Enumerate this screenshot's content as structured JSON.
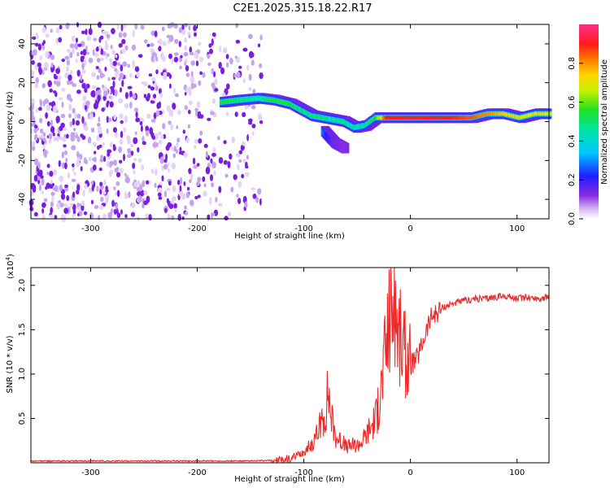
{
  "title": "C2E1.2025.315.18.22.R17",
  "colors": {
    "snr_line": "#ee2a2a",
    "axis": "#000000",
    "purple_noise": "#7a1fe0",
    "background": "#ffffff"
  },
  "chart_data": [
    {
      "type": "heatmap",
      "name": "spectrogram",
      "xlabel": "Height of straight line (km)",
      "ylabel": "Frequency (Hz)",
      "xlim": [
        -356,
        130
      ],
      "ylim": [
        -50,
        50
      ],
      "x_ticks": [
        -300,
        -200,
        -100,
        0,
        100
      ],
      "x_tick_labels": [
        "-300",
        "-200",
        "-100",
        "0",
        "100"
      ],
      "y_ticks": [
        -40,
        -20,
        0,
        20,
        40
      ],
      "y_tick_labels": [
        "-40",
        "-20",
        "0",
        "20",
        "40"
      ],
      "colorbar": {
        "label": "Normalized spectral amplitude",
        "range": [
          0,
          1
        ],
        "ticks": [
          0.0,
          0.2,
          0.4,
          0.6,
          0.8
        ],
        "tick_labels": [
          "0.0",
          "0.2",
          "0.4",
          "0.6",
          "0.8"
        ],
        "colormap": "rainbow (purple-blue-cyan-green-yellow-orange-red-pink)"
      },
      "noise_region": {
        "x_from": -356,
        "x_to": -140,
        "freq_range": [
          -50,
          50
        ],
        "amplitude": "low (0.0-0.15)"
      },
      "signal_track": [
        {
          "x": -175,
          "freq": 10,
          "amp": 0.55
        },
        {
          "x": -160,
          "freq": 11,
          "amp": 0.5
        },
        {
          "x": -140,
          "freq": 12,
          "amp": 0.45
        },
        {
          "x": -125,
          "freq": 11,
          "amp": 0.55
        },
        {
          "x": -110,
          "freq": 9,
          "amp": 0.55
        },
        {
          "x": -100,
          "freq": 6,
          "amp": 0.5
        },
        {
          "x": -90,
          "freq": 3,
          "amp": 0.5
        },
        {
          "x": -80,
          "freq": 2,
          "amp": 0.5
        },
        {
          "x": -70,
          "freq": 1,
          "amp": 0.45
        },
        {
          "x": -60,
          "freq": 0,
          "amp": 0.5
        },
        {
          "x": -50,
          "freq": -3,
          "amp": 0.45
        },
        {
          "x": -40,
          "freq": -2,
          "amp": 0.45
        },
        {
          "x": -30,
          "freq": 2,
          "amp": 0.55
        },
        {
          "x": -20,
          "freq": 2,
          "amp": 0.9
        },
        {
          "x": 0,
          "freq": 2,
          "amp": 0.9
        },
        {
          "x": 20,
          "freq": 2,
          "amp": 0.9
        },
        {
          "x": 40,
          "freq": 2,
          "amp": 0.9
        },
        {
          "x": 60,
          "freq": 2,
          "amp": 0.85
        },
        {
          "x": 75,
          "freq": 4,
          "amp": 0.8
        },
        {
          "x": 90,
          "freq": 4,
          "amp": 0.75
        },
        {
          "x": 105,
          "freq": 2,
          "amp": 0.7
        },
        {
          "x": 120,
          "freq": 4,
          "amp": 0.7
        },
        {
          "x": 130,
          "freq": 4,
          "amp": 0.7
        }
      ],
      "secondary_track": [
        {
          "x": -80,
          "freq": -5,
          "amp": 0.3
        },
        {
          "x": -75,
          "freq": -8,
          "amp": 0.2
        },
        {
          "x": -70,
          "freq": -11,
          "amp": 0.15
        },
        {
          "x": -60,
          "freq": -14,
          "amp": 0.12
        }
      ]
    },
    {
      "type": "line",
      "name": "snr",
      "xlabel": "Height of straight line (km)",
      "ylabel": "SNR (10 * v/v)",
      "y_multiplier": "(x10",
      "y_multiplier_exp": "4",
      "y_multiplier_close": ")",
      "xlim": [
        -356,
        130
      ],
      "ylim": [
        0,
        2.2
      ],
      "x_ticks": [
        -300,
        -200,
        -100,
        0,
        100
      ],
      "x_tick_labels": [
        "-300",
        "-200",
        "-100",
        "0",
        "100"
      ],
      "y_ticks": [
        0.5,
        1.0,
        1.5,
        2.0
      ],
      "y_tick_labels": [
        "0.5",
        "1.0",
        "1.5",
        "2.0"
      ],
      "series": [
        {
          "name": "SNR",
          "x": [
            -356,
            -300,
            -200,
            -150,
            -120,
            -110,
            -100,
            -95,
            -90,
            -85,
            -80,
            -77,
            -75,
            -72,
            -70,
            -65,
            -60,
            -55,
            -50,
            -45,
            -40,
            -35,
            -30,
            -27,
            -25,
            -22,
            -20,
            -18,
            -16,
            -14,
            -12,
            -10,
            -8,
            -5,
            0,
            5,
            10,
            15,
            20,
            25,
            30,
            40,
            50,
            60,
            70,
            80,
            90,
            95,
            100,
            110,
            120,
            130
          ],
          "y": [
            0.02,
            0.02,
            0.02,
            0.02,
            0.03,
            0.05,
            0.12,
            0.18,
            0.25,
            0.4,
            0.55,
            0.85,
            0.6,
            0.4,
            0.3,
            0.25,
            0.18,
            0.2,
            0.2,
            0.25,
            0.35,
            0.45,
            0.6,
            0.9,
            1.1,
            1.4,
            1.6,
            1.7,
            1.8,
            1.75,
            1.5,
            1.4,
            1.3,
            1.2,
            1.1,
            1.15,
            1.3,
            1.5,
            1.65,
            1.7,
            1.75,
            1.8,
            1.82,
            1.85,
            1.85,
            1.87,
            1.88,
            1.86,
            1.85,
            1.87,
            1.85,
            1.87
          ]
        }
      ]
    }
  ]
}
